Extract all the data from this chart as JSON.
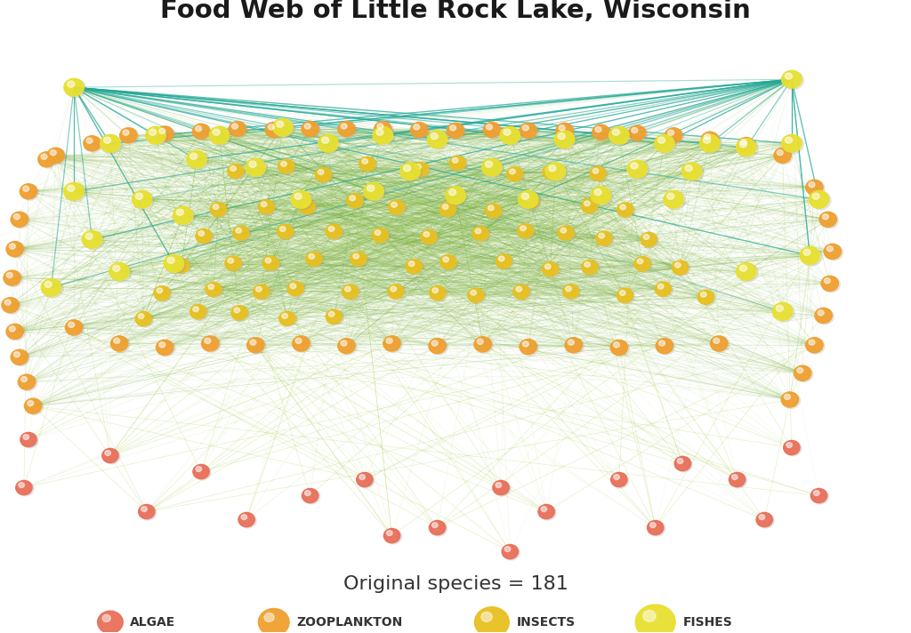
{
  "title": "Food Web of Little Rock Lake, Wisconsin",
  "subtitle": "Original species = 181",
  "background_color": "#ffffff",
  "title_fontsize": 21,
  "subtitle_fontsize": 16,
  "categories": [
    "ALGAE",
    "ZOOPLANKTON",
    "INSECTS",
    "FISHES"
  ],
  "colors": {
    "algae": "#E8705A",
    "zooplankton": "#F0A030",
    "insects": "#E8C020",
    "fishes": "#E8E030",
    "edge_green_dark": "#6AAA30",
    "edge_green_light": "#A8D050",
    "edge_teal": "#20A898"
  },
  "seed": 42
}
